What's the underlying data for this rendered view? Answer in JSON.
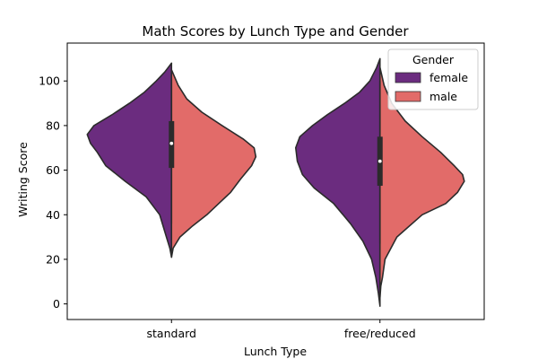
{
  "chart_data": {
    "type": "violin",
    "split": true,
    "title": "Math Scores by Lunch Type and Gender",
    "xlabel": "Lunch Type",
    "ylabel": "Writing Score",
    "categories": [
      "standard",
      "free/reduced"
    ],
    "ylim": [
      -7,
      117
    ],
    "yticks": [
      0,
      20,
      40,
      60,
      80,
      100
    ],
    "grid": false,
    "legend": {
      "title": "Gender",
      "placement": "top-right",
      "entries": [
        "female",
        "male"
      ]
    },
    "series": [
      {
        "name": "female",
        "color": "#6B2C7F"
      },
      {
        "name": "male",
        "color": "#E26B69"
      }
    ],
    "violins": [
      {
        "category": "standard",
        "series": "female",
        "y_range": [
          21,
          108
        ],
        "profile": [
          [
            21,
            0
          ],
          [
            25,
            0.02
          ],
          [
            30,
            0.06
          ],
          [
            40,
            0.14
          ],
          [
            48,
            0.3
          ],
          [
            55,
            0.55
          ],
          [
            62,
            0.78
          ],
          [
            68,
            0.88
          ],
          [
            72,
            0.96
          ],
          [
            76,
            1.0
          ],
          [
            80,
            0.92
          ],
          [
            85,
            0.7
          ],
          [
            90,
            0.5
          ],
          [
            95,
            0.32
          ],
          [
            100,
            0.18
          ],
          [
            104,
            0.08
          ],
          [
            108,
            0
          ]
        ]
      },
      {
        "category": "standard",
        "series": "male",
        "y_range": [
          21,
          105
        ],
        "profile": [
          [
            21,
            0
          ],
          [
            25,
            0.02
          ],
          [
            30,
            0.1
          ],
          [
            35,
            0.25
          ],
          [
            40,
            0.42
          ],
          [
            45,
            0.56
          ],
          [
            50,
            0.7
          ],
          [
            56,
            0.82
          ],
          [
            62,
            0.95
          ],
          [
            66,
            1.0
          ],
          [
            70,
            0.98
          ],
          [
            74,
            0.85
          ],
          [
            80,
            0.6
          ],
          [
            86,
            0.36
          ],
          [
            92,
            0.18
          ],
          [
            98,
            0.08
          ],
          [
            105,
            0
          ]
        ]
      },
      {
        "category": "free/reduced",
        "series": "female",
        "y_range": [
          -1,
          110
        ],
        "profile": [
          [
            -1,
            0
          ],
          [
            5,
            0.02
          ],
          [
            12,
            0.05
          ],
          [
            20,
            0.1
          ],
          [
            28,
            0.2
          ],
          [
            36,
            0.35
          ],
          [
            45,
            0.55
          ],
          [
            52,
            0.78
          ],
          [
            58,
            0.92
          ],
          [
            64,
            0.98
          ],
          [
            70,
            1.0
          ],
          [
            75,
            0.95
          ],
          [
            80,
            0.8
          ],
          [
            85,
            0.62
          ],
          [
            90,
            0.42
          ],
          [
            95,
            0.24
          ],
          [
            100,
            0.12
          ],
          [
            106,
            0.04
          ],
          [
            110,
            0
          ]
        ]
      },
      {
        "category": "free/reduced",
        "series": "male",
        "y_range": [
          3,
          106
        ],
        "profile": [
          [
            3,
            0
          ],
          [
            8,
            0.01
          ],
          [
            12,
            0.03
          ],
          [
            20,
            0.06
          ],
          [
            30,
            0.2
          ],
          [
            40,
            0.5
          ],
          [
            45,
            0.78
          ],
          [
            50,
            0.92
          ],
          [
            55,
            1.0
          ],
          [
            58,
            0.98
          ],
          [
            62,
            0.88
          ],
          [
            68,
            0.72
          ],
          [
            75,
            0.5
          ],
          [
            82,
            0.3
          ],
          [
            90,
            0.14
          ],
          [
            98,
            0.05
          ],
          [
            106,
            0
          ]
        ]
      }
    ],
    "boxes": [
      {
        "category": "standard",
        "q1": 61,
        "median": 72,
        "q3": 82,
        "whisker_low": 36,
        "whisker_high": 101
      },
      {
        "category": "free/reduced",
        "q1": 53,
        "median": 64,
        "q3": 75,
        "whisker_low": 27,
        "whisker_high": 100
      }
    ]
  }
}
